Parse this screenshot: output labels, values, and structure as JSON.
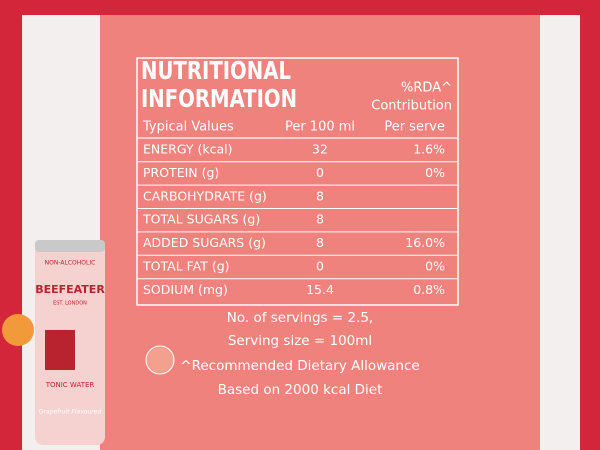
{
  "header": {
    "title_lines": [
      "NUTRITIONAL",
      "INFORMATION"
    ],
    "rda_lines": [
      "%RDA^",
      "Contribution"
    ]
  },
  "table": {
    "columns": [
      "Typical Values",
      "Per 100 ml",
      "Per serve"
    ],
    "rows": [
      [
        "ENERGY (kcal)",
        "32",
        "1.6%"
      ],
      [
        "PROTEIN (g)",
        "0",
        "0%"
      ],
      [
        "CARBOHYDRATE (g)",
        "8",
        null
      ],
      [
        "TOTAL SUGARS (g)",
        "8",
        null
      ],
      [
        "ADDED SUGARS (g)",
        "8",
        "16.0%"
      ],
      [
        "TOTAL FAT (g)",
        "0",
        "0%"
      ],
      [
        "SODIUM (mg)",
        "15.4",
        "0.8%"
      ]
    ]
  },
  "footer": [
    "No. of servings = 2.5,",
    "Serving size = 100ml",
    "^Recommended Dietary Allowance",
    "Based on 2000 kcal Diet"
  ],
  "can": {
    "tag": "NON-ALCOHOLIC",
    "brand": "BEEFEATER",
    "est": "EST. LONDON",
    "product": "TONIC WATER",
    "flavour": "Grapefruit Flavoured"
  }
}
